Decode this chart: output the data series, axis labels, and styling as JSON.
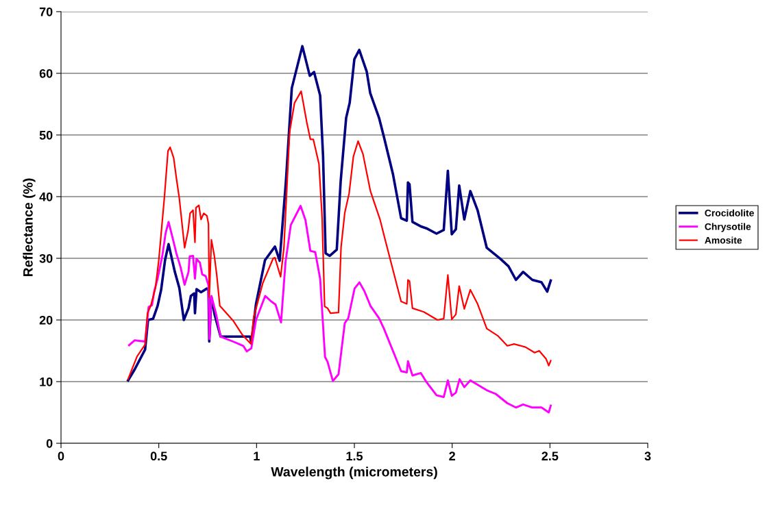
{
  "chart_data": {
    "type": "line",
    "xlabel": "Wavelength (micrometers)",
    "ylabel": "Reflectance (%)",
    "xlim": [
      0,
      3
    ],
    "xticks": [
      0,
      0.5,
      1,
      1.5,
      2,
      2.5,
      3
    ],
    "ylim": [
      0,
      70
    ],
    "yticks": [
      0,
      10,
      20,
      30,
      40,
      50,
      60,
      70
    ],
    "grid": "y",
    "legend": "right",
    "marker": "none",
    "line_style": "solid",
    "series": [
      {
        "name": "Crocidolite",
        "color": "#000080",
        "x": [
          0.343,
          0.377,
          0.43,
          0.445,
          0.471,
          0.494,
          0.512,
          0.532,
          0.55,
          0.582,
          0.605,
          0.628,
          0.652,
          0.664,
          0.681,
          0.685,
          0.693,
          0.716,
          0.746,
          0.754,
          0.758,
          0.769,
          0.786,
          0.816,
          0.967,
          0.973,
          0.997,
          1.043,
          1.094,
          1.118,
          1.15,
          1.18,
          1.234,
          1.272,
          1.294,
          1.325,
          1.34,
          1.353,
          1.374,
          1.41,
          1.43,
          1.458,
          1.476,
          1.5,
          1.525,
          1.563,
          1.581,
          1.626,
          1.651,
          1.697,
          1.739,
          1.768,
          1.774,
          1.782,
          1.797,
          1.838,
          1.873,
          1.92,
          1.957,
          1.978,
          1.998,
          2.019,
          2.036,
          2.062,
          2.093,
          2.13,
          2.177,
          2.247,
          2.288,
          2.326,
          2.363,
          2.41,
          2.457,
          2.486,
          2.504
        ],
        "values": [
          10.2,
          12.0,
          15.2,
          20.0,
          20.2,
          22.3,
          24.9,
          29.7,
          32.3,
          27.8,
          25.2,
          20.0,
          21.9,
          23.9,
          24.3,
          21.1,
          25.0,
          24.5,
          25.1,
          24.9,
          16.5,
          23.7,
          20.8,
          17.3,
          17.3,
          16.3,
          22.6,
          29.7,
          31.9,
          29.6,
          42.5,
          57.6,
          64.4,
          59.6,
          60.2,
          56.4,
          46.5,
          30.8,
          30.4,
          31.4,
          42.5,
          52.8,
          55.2,
          62.3,
          63.8,
          60.3,
          56.8,
          52.8,
          49.7,
          43.7,
          36.5,
          36.1,
          42.3,
          42.0,
          35.9,
          35.2,
          34.8,
          34.0,
          34.6,
          44.2,
          33.9,
          34.7,
          41.8,
          36.3,
          40.9,
          37.8,
          31.7,
          29.9,
          28.7,
          26.5,
          27.8,
          26.5,
          26.1,
          24.6,
          26.4
        ]
      },
      {
        "name": "Chrysotile",
        "color": "#ff00ff",
        "x": [
          0.348,
          0.377,
          0.43,
          0.448,
          0.465,
          0.477,
          0.494,
          0.518,
          0.535,
          0.55,
          0.57,
          0.59,
          0.611,
          0.632,
          0.652,
          0.658,
          0.675,
          0.685,
          0.693,
          0.71,
          0.722,
          0.74,
          0.754,
          0.759,
          0.769,
          0.792,
          0.816,
          0.88,
          0.932,
          0.95,
          0.973,
          0.997,
          1.044,
          1.075,
          1.097,
          1.125,
          1.148,
          1.175,
          1.225,
          1.25,
          1.275,
          1.3,
          1.325,
          1.35,
          1.363,
          1.39,
          1.419,
          1.451,
          1.469,
          1.501,
          1.526,
          1.551,
          1.582,
          1.626,
          1.651,
          1.72,
          1.739,
          1.768,
          1.774,
          1.797,
          1.84,
          1.867,
          1.92,
          1.957,
          1.978,
          1.998,
          2.019,
          2.038,
          2.062,
          2.093,
          2.177,
          2.223,
          2.282,
          2.326,
          2.363,
          2.41,
          2.457,
          2.494,
          2.504
        ],
        "values": [
          15.9,
          16.7,
          16.5,
          22.1,
          22.4,
          24.7,
          26.7,
          30.4,
          34.1,
          35.9,
          33.4,
          30.8,
          28.6,
          25.7,
          27.8,
          30.3,
          30.4,
          26.7,
          29.9,
          29.3,
          27.4,
          27.1,
          25.6,
          16.9,
          23.9,
          21.1,
          17.3,
          16.5,
          15.8,
          14.9,
          15.4,
          20.0,
          23.9,
          23.0,
          22.5,
          19.6,
          29.4,
          35.4,
          38.5,
          36.2,
          31.2,
          31.0,
          26.7,
          14.0,
          13.2,
          10.1,
          11.2,
          19.5,
          20.3,
          25.1,
          26.1,
          24.7,
          22.3,
          20.3,
          18.6,
          13.2,
          11.7,
          11.5,
          13.3,
          11.0,
          11.4,
          10.0,
          7.8,
          7.5,
          10.2,
          7.7,
          8.2,
          10.4,
          9.1,
          10.2,
          8.6,
          8.0,
          6.5,
          5.8,
          6.3,
          5.8,
          5.8,
          5.0,
          6.1
        ]
      },
      {
        "name": "Amosite",
        "color": "#ff0000",
        "x": [
          0.343,
          0.389,
          0.43,
          0.442,
          0.459,
          0.483,
          0.5,
          0.529,
          0.547,
          0.558,
          0.576,
          0.59,
          0.605,
          0.632,
          0.65,
          0.66,
          0.675,
          0.685,
          0.69,
          0.705,
          0.716,
          0.73,
          0.746,
          0.754,
          0.758,
          0.769,
          0.784,
          0.796,
          0.812,
          0.88,
          0.927,
          0.971,
          0.985,
          1.032,
          1.085,
          1.094,
          1.123,
          1.14,
          1.169,
          1.194,
          1.228,
          1.257,
          1.275,
          1.29,
          1.319,
          1.335,
          1.348,
          1.363,
          1.378,
          1.419,
          1.432,
          1.451,
          1.473,
          1.495,
          1.519,
          1.544,
          1.582,
          1.632,
          1.651,
          1.739,
          1.768,
          1.774,
          1.782,
          1.797,
          1.855,
          1.925,
          1.957,
          1.978,
          1.998,
          2.019,
          2.036,
          2.062,
          2.093,
          2.13,
          2.177,
          2.235,
          2.282,
          2.317,
          2.375,
          2.422,
          2.445,
          2.48,
          2.494,
          2.504
        ],
        "values": [
          10.4,
          14.1,
          16.0,
          21.1,
          22.3,
          25.2,
          29.7,
          40.0,
          47.4,
          48.0,
          46.3,
          43.0,
          39.7,
          31.7,
          34.5,
          37.3,
          37.8,
          32.6,
          38.2,
          38.6,
          36.3,
          37.3,
          36.9,
          35.6,
          23.7,
          33.0,
          30.4,
          27.4,
          22.3,
          19.9,
          17.6,
          16.1,
          20.4,
          26.0,
          30.0,
          30.1,
          27.0,
          31.8,
          50.5,
          55.2,
          57.1,
          52.0,
          49.3,
          49.3,
          45.3,
          36.6,
          22.2,
          21.9,
          21.1,
          21.2,
          31.8,
          37.4,
          40.5,
          46.5,
          49.0,
          46.9,
          40.9,
          36.2,
          33.8,
          23.0,
          22.6,
          26.5,
          26.3,
          21.9,
          21.3,
          20.0,
          20.2,
          27.3,
          20.1,
          20.9,
          25.5,
          21.8,
          24.9,
          22.6,
          18.6,
          17.4,
          15.8,
          16.1,
          15.6,
          14.7,
          15.0,
          13.7,
          12.6,
          13.4
        ]
      }
    ]
  }
}
